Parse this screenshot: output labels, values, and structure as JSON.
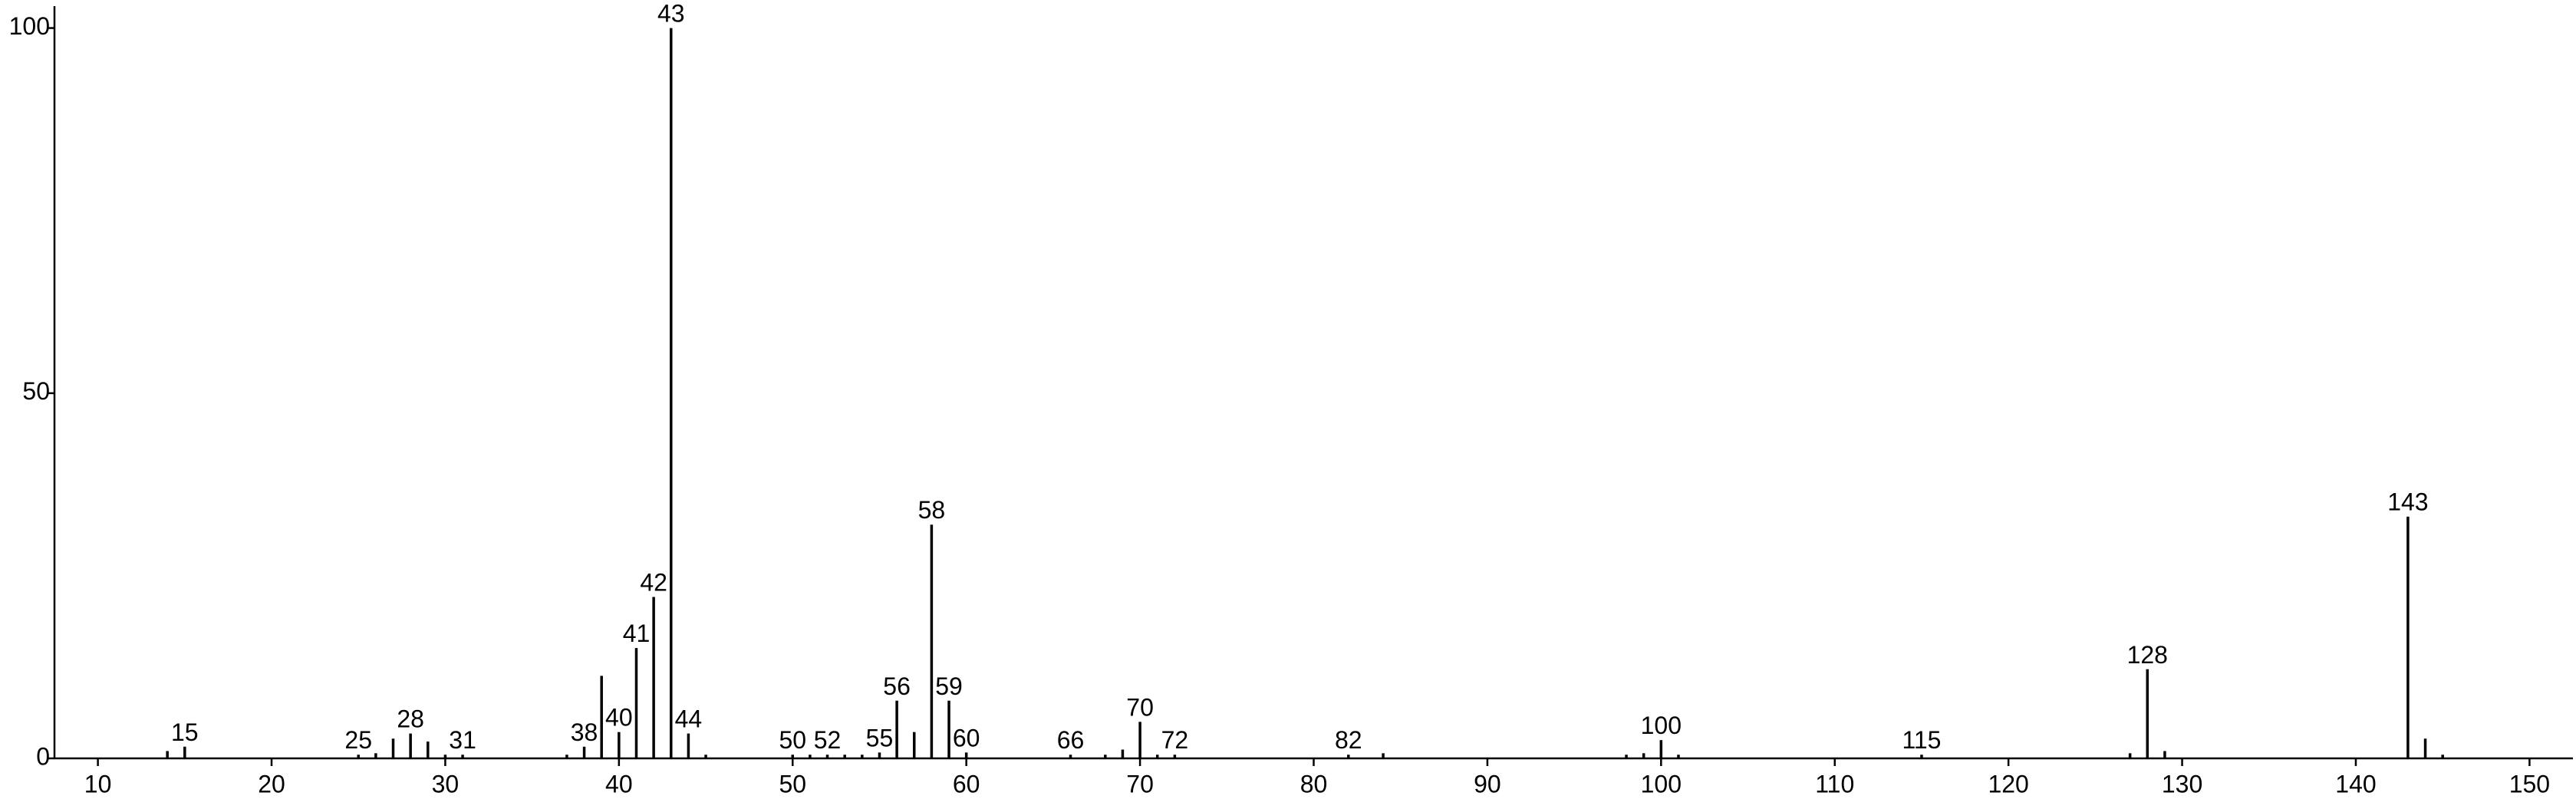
{
  "chart_data": {
    "type": "stem",
    "x": [
      14,
      15,
      25,
      26,
      27,
      28,
      29,
      30,
      31,
      37,
      38,
      39,
      40,
      41,
      42,
      43,
      44,
      45,
      50,
      51,
      52,
      53,
      54,
      55,
      56,
      57,
      58,
      59,
      60,
      66,
      68,
      69,
      70,
      71,
      72,
      82,
      84,
      98,
      99,
      100,
      101,
      115,
      127,
      128,
      129,
      143,
      144,
      145
    ],
    "values": [
      1,
      1.6,
      0.5,
      0.7,
      2.7,
      3.4,
      2.3,
      0.5,
      0.5,
      0.5,
      1.6,
      11.3,
      3.6,
      15.1,
      22.1,
      100,
      3.4,
      0.5,
      0.5,
      0.5,
      0.5,
      0.5,
      0.5,
      0.8,
      7.9,
      3.6,
      32,
      7.9,
      0.8,
      0.5,
      0.5,
      1.2,
      5,
      0.5,
      0.5,
      0.5,
      0.7,
      0.5,
      0.7,
      2.5,
      0.5,
      0.5,
      0.7,
      12.2,
      1,
      33.1,
      2.7,
      0.5
    ],
    "x_labels": [
      null,
      "15",
      "25",
      null,
      null,
      "28",
      null,
      null,
      "31",
      null,
      "38",
      null,
      "40",
      "41",
      "42",
      "43",
      "44",
      null,
      "50",
      null,
      "52",
      null,
      null,
      "55",
      "56",
      null,
      "58",
      "59",
      "60",
      "66",
      null,
      null,
      "70",
      null,
      "72",
      "82",
      null,
      null,
      null,
      "100",
      null,
      "115",
      null,
      "128",
      null,
      "143",
      null,
      null
    ],
    "color": "#000000",
    "xlim": [
      7.5,
      152.5
    ],
    "xticks": [
      10,
      20,
      30,
      40,
      50,
      60,
      70,
      80,
      90,
      100,
      110,
      120,
      130,
      140,
      150
    ],
    "ylim": [
      0,
      103
    ],
    "yticks": [
      0,
      50,
      100
    ],
    "grid": false
  }
}
